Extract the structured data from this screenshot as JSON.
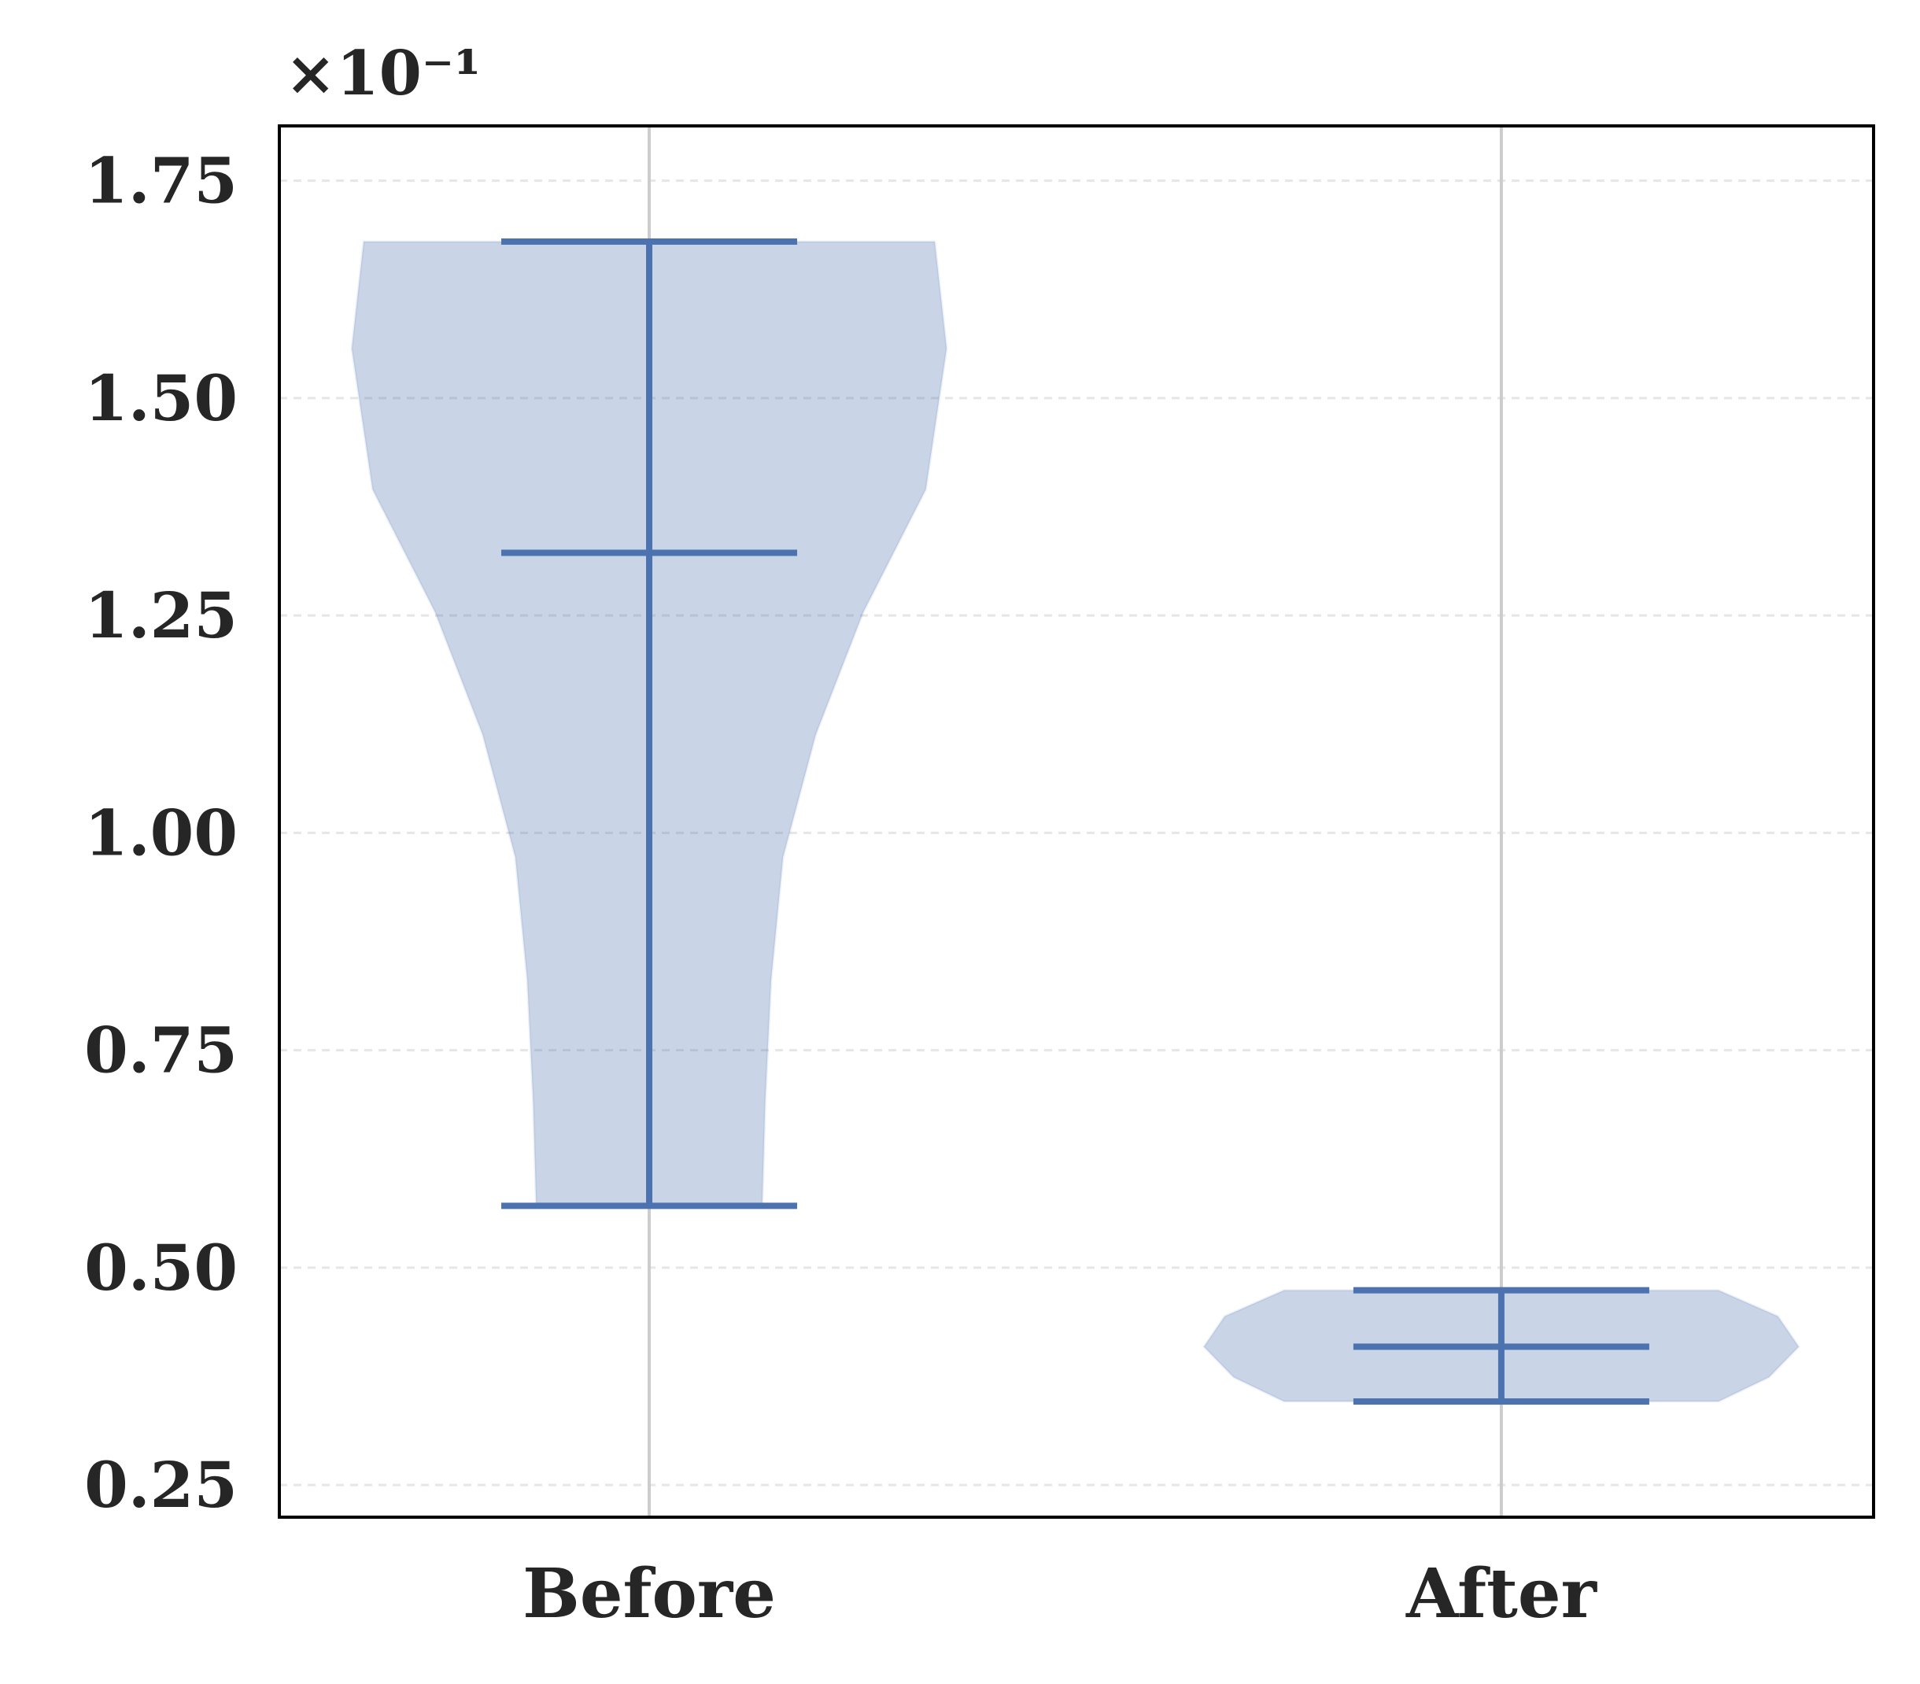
{
  "chart_data": {
    "type": "violin",
    "y_offset_label": "×10⁻¹",
    "categories": [
      "Before",
      "After"
    ],
    "color": "#4c72b0",
    "stats": [
      {
        "min": 0.571,
        "median": 1.322,
        "max": 1.68,
        "kde": {
          "y": [
            0.571,
            0.69,
            0.831,
            0.972,
            1.113,
            1.254,
            1.395,
            1.557,
            1.68
          ],
          "density": [
            0.38,
            0.39,
            0.41,
            0.45,
            0.56,
            0.72,
            0.93,
            1.0,
            0.96
          ]
        }
      },
      {
        "min": 0.346,
        "median": 0.409,
        "max": 0.474,
        "kde": {
          "y": [
            0.346,
            0.374,
            0.409,
            0.444,
            0.474
          ],
          "density": [
            0.73,
            0.9,
            1.0,
            0.93,
            0.73
          ]
        }
      }
    ],
    "ylim": [
      0.213,
      1.813
    ],
    "yticks": [
      {
        "value": 0.25,
        "label": "0.25"
      },
      {
        "value": 0.5,
        "label": "0.50"
      },
      {
        "value": 0.75,
        "label": "0.75"
      },
      {
        "value": 1.0,
        "label": "1.00"
      },
      {
        "value": 1.25,
        "label": "1.25"
      },
      {
        "value": 1.5,
        "label": "1.50"
      },
      {
        "value": 1.75,
        "label": "1.75"
      }
    ],
    "grid": true
  }
}
